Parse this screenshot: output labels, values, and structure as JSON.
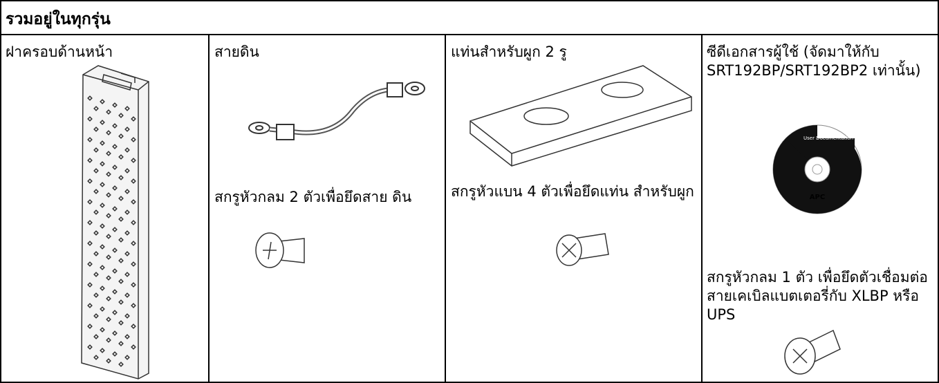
{
  "header": {
    "title": "รวมอยู่ในทุกรุ่น"
  },
  "cells": [
    {
      "items": [
        {
          "label": "ฝาครอบด้านหน้า"
        }
      ]
    },
    {
      "items": [
        {
          "label": "สายดิน"
        },
        {
          "label": "สกรูหัวกลม 2 ตัวเพื่อยึดสาย ดิน"
        }
      ]
    },
    {
      "items": [
        {
          "label": "แท่นสำหรับผูก 2 รู"
        },
        {
          "label": "สกรูหัวแบน 4 ตัวเพื่อยึดแท่น สำหรับผูก"
        }
      ]
    },
    {
      "items": [
        {
          "label": "ซีดีเอกสารผู้ใช้ (จัดมาให้กับ SRT192BP/SRT192BP2 เท่านั้น)",
          "disc_text": "User Documentation",
          "disc_brand": "APC"
        },
        {
          "label": "สกรูหัวกลม 1 ตัว เพื่อยึดตัวเชื่อมต่อสายเคเบิลแบตเตอรี่กับ XLBP หรือ UPS"
        }
      ]
    }
  ]
}
